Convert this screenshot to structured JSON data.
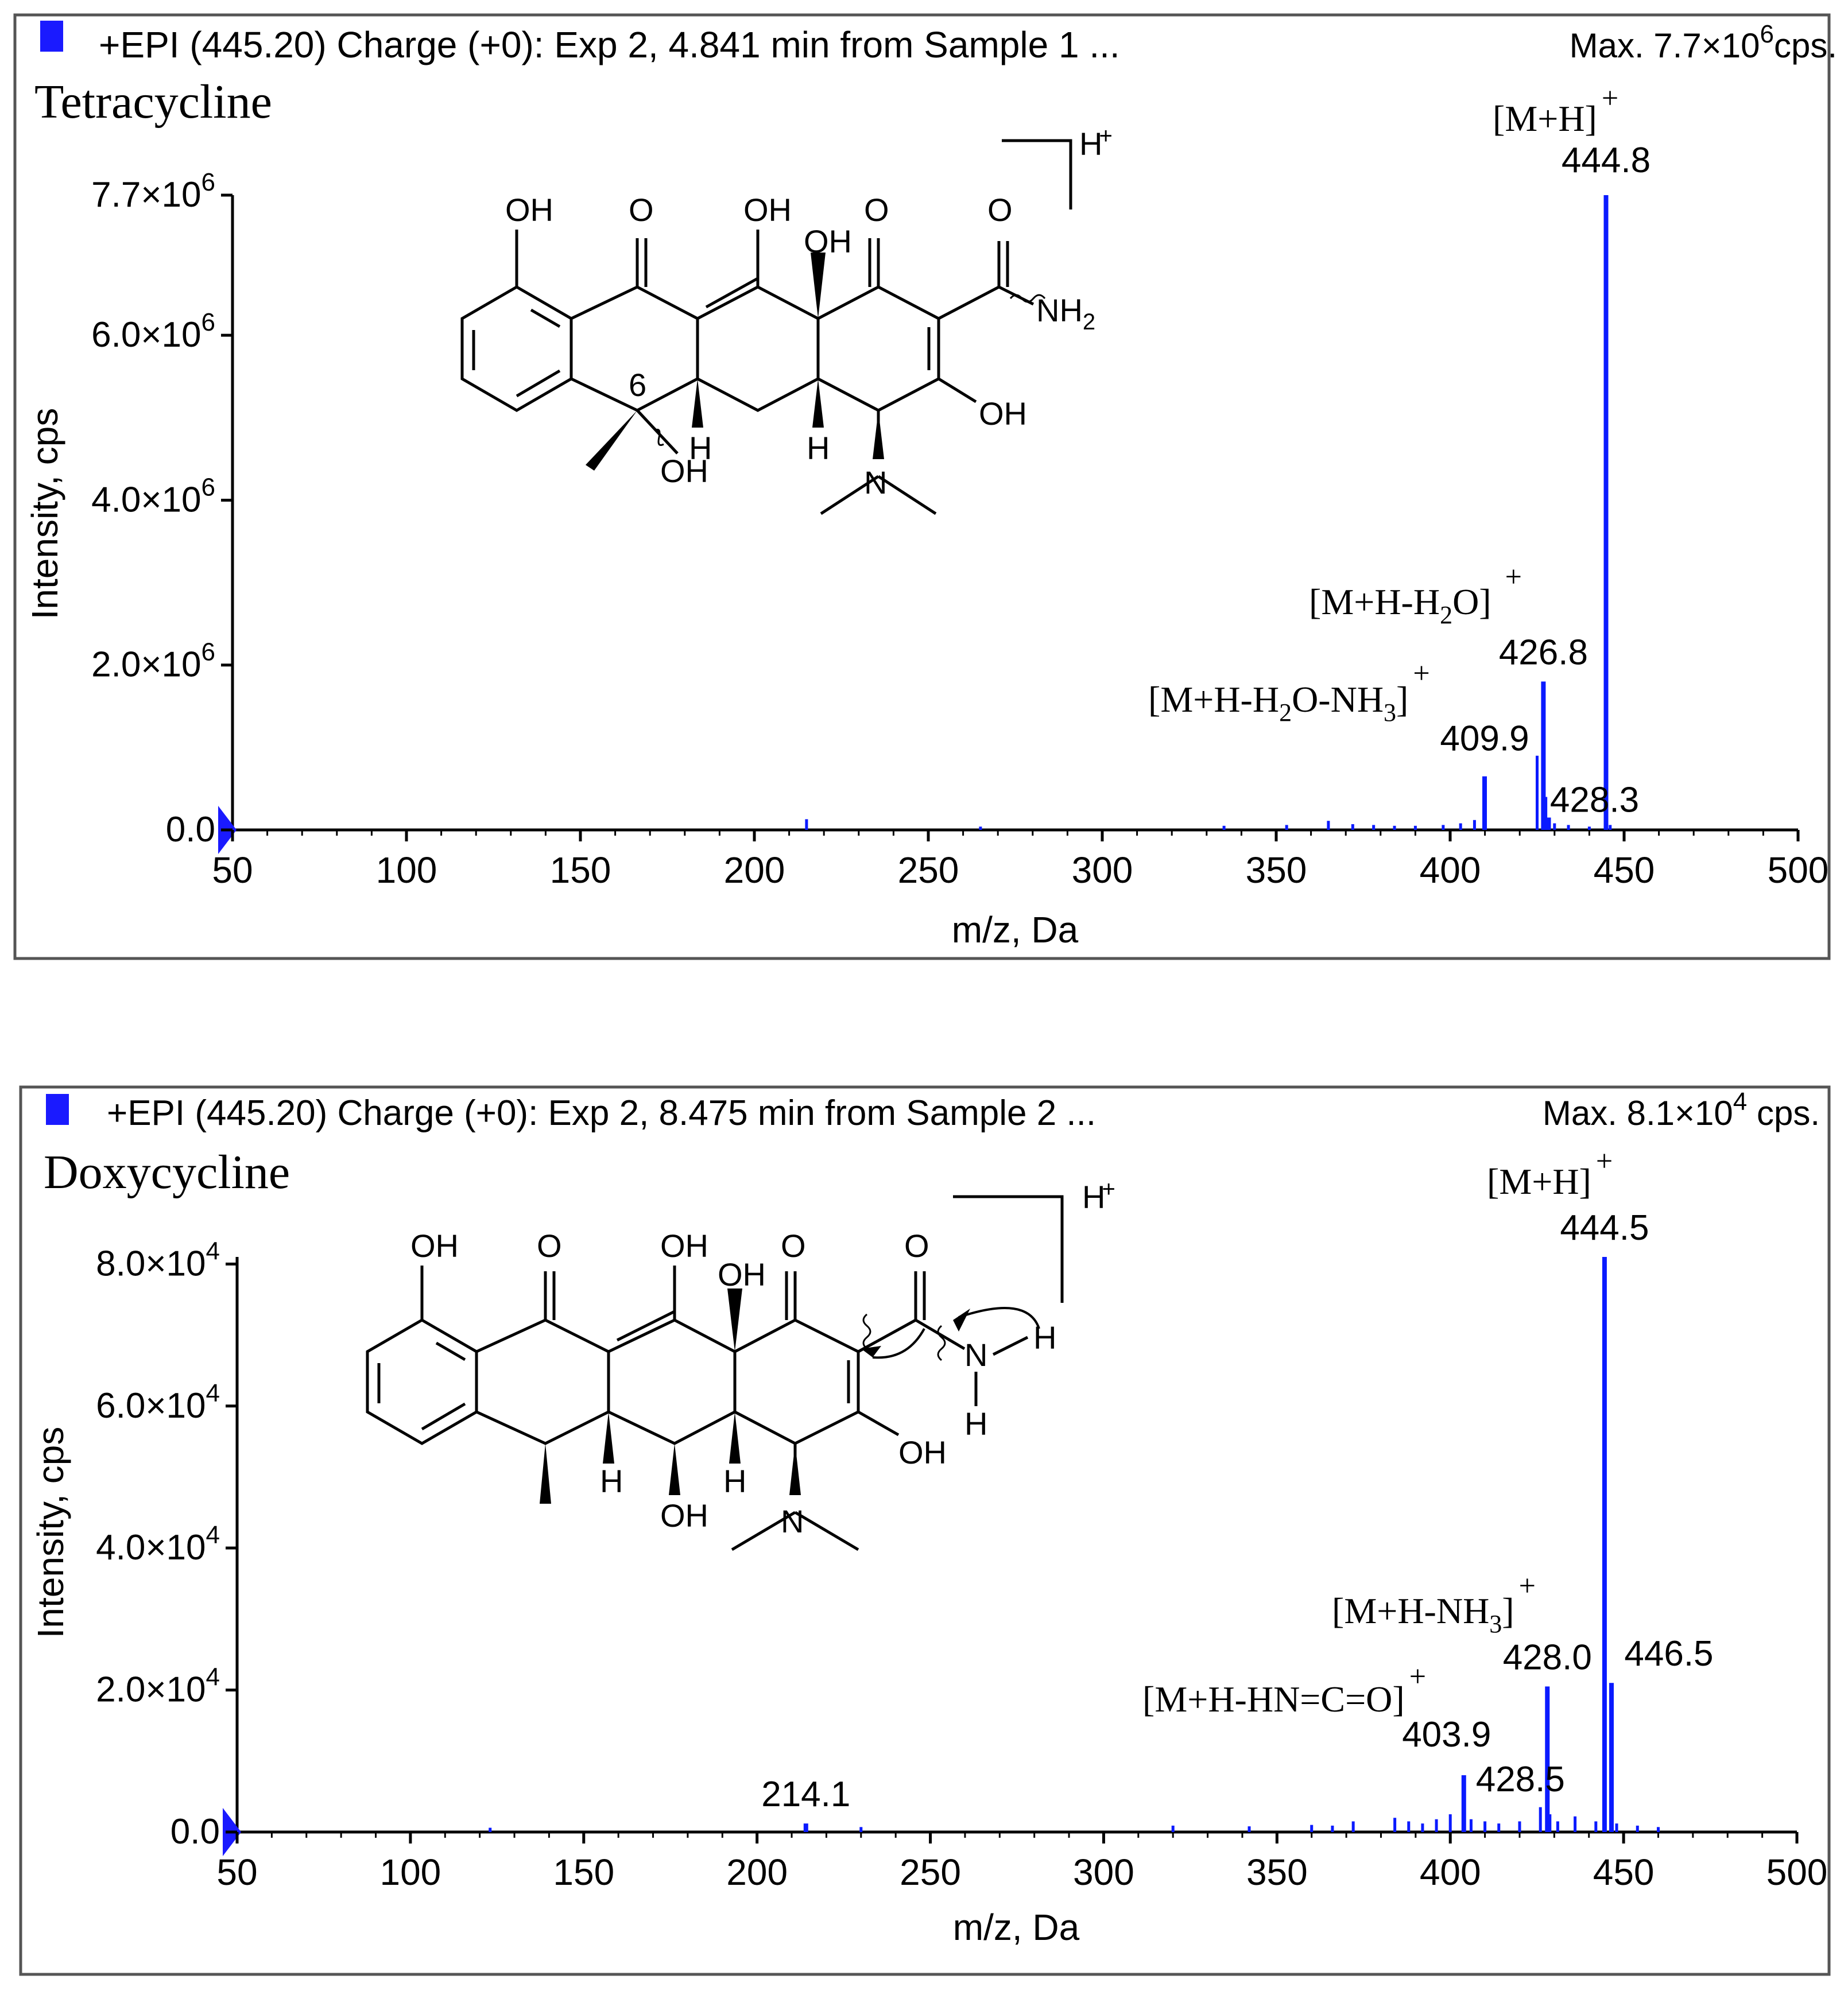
{
  "colors": {
    "peak": "#0a1aff",
    "axis": "#000000",
    "text": "#000000",
    "marker": "#1a1aff"
  },
  "panels": [
    {
      "header": {
        "text": "+EPI (445.20) Charge (+0): Exp 2, 4.841 min from Sample 1 ...",
        "max_prefix": "Max.  7.7×10",
        "max_exp": "6",
        "max_suffix": "cps."
      },
      "compound": "Tetracycline",
      "structure": {
        "oh_labels": [
          "OH",
          "OH",
          "OH",
          "OH",
          "OH"
        ],
        "o_labels": [
          "O",
          "O",
          "O"
        ],
        "nh2_main": "NH",
        "nh2_sub": "2",
        "n_label": "N",
        "h_labels": [
          "H",
          "H"
        ],
        "position_label": "6",
        "proton_label": "H",
        "proton_charge": "+"
      },
      "yticks": [
        {
          "mant": "0.0",
          "exp": ""
        },
        {
          "mant": "2.0×10",
          "exp": "6"
        },
        {
          "mant": "4.0×10",
          "exp": "6"
        },
        {
          "mant": "6.0×10",
          "exp": "6"
        },
        {
          "mant": "7.7×10",
          "exp": "6"
        }
      ],
      "ion_labels": [
        {
          "parts": [
            "[M+H]"
          ],
          "subs": [
            ""
          ],
          "charge": "+"
        },
        {
          "parts": [
            "[M+H-H",
            "O]"
          ],
          "subs": [
            "2",
            ""
          ],
          "charge": "+"
        },
        {
          "parts": [
            "[M+H-H",
            "O-NH",
            "]"
          ],
          "subs": [
            "2",
            "3",
            ""
          ],
          "charge": "+"
        }
      ]
    },
    {
      "header": {
        "text": "+EPI (445.20) Charge (+0): Exp 2, 8.475 min from Sample 2 ...",
        "max_prefix": "Max.  8.1×10",
        "max_exp": "4",
        "max_suffix": " cps."
      },
      "compound": "Doxycycline",
      "structure": {
        "oh_labels": [
          "OH",
          "OH",
          "OH",
          "OH",
          "OH"
        ],
        "o_labels": [
          "O",
          "O",
          "O"
        ],
        "n_label": "N",
        "nh_label": "N",
        "h_labels": [
          "H",
          "H",
          "H",
          "H"
        ],
        "proton_label": "H",
        "proton_charge": "+"
      },
      "yticks": [
        {
          "mant": "0.0",
          "exp": ""
        },
        {
          "mant": "2.0×10",
          "exp": "4"
        },
        {
          "mant": "4.0×10",
          "exp": "4"
        },
        {
          "mant": "6.0×10",
          "exp": "4"
        },
        {
          "mant": "8.0×10",
          "exp": "4"
        }
      ],
      "ion_labels": [
        {
          "parts": [
            "[M+H]"
          ],
          "subs": [
            ""
          ],
          "charge": "+"
        },
        {
          "parts": [
            "[M+H-NH",
            "]"
          ],
          "subs": [
            "3",
            ""
          ],
          "charge": "+"
        },
        {
          "parts": [
            "[M+H-HN=C=O]"
          ],
          "subs": [
            ""
          ],
          "charge": "+"
        }
      ]
    }
  ],
  "chart_data": [
    {
      "type": "bar",
      "title": "Tetracycline",
      "xlabel": "m/z, Da",
      "ylabel": "Intensity, cps",
      "xlim": [
        50,
        500
      ],
      "ylim": [
        0,
        7700000
      ],
      "xticks": [
        50,
        100,
        150,
        200,
        250,
        300,
        350,
        400,
        450,
        500
      ],
      "peaks": [
        {
          "x": 444.8,
          "y": 7700000,
          "label": "444.8"
        },
        {
          "x": 426.8,
          "y": 1800000,
          "label": "426.8"
        },
        {
          "x": 409.9,
          "y": 650000,
          "label": "409.9"
        },
        {
          "x": 428.3,
          "y": 150000,
          "label": "428.3"
        }
      ],
      "minor_peaks": [
        {
          "x": 215,
          "y": 130000
        },
        {
          "x": 265,
          "y": 40000
        },
        {
          "x": 335,
          "y": 50000
        },
        {
          "x": 353,
          "y": 60000
        },
        {
          "x": 365,
          "y": 110000
        },
        {
          "x": 372,
          "y": 70000
        },
        {
          "x": 378,
          "y": 60000
        },
        {
          "x": 384,
          "y": 50000
        },
        {
          "x": 390,
          "y": 50000
        },
        {
          "x": 398,
          "y": 60000
        },
        {
          "x": 403,
          "y": 80000
        },
        {
          "x": 407,
          "y": 120000
        },
        {
          "x": 425,
          "y": 900000
        },
        {
          "x": 427.5,
          "y": 400000
        },
        {
          "x": 430,
          "y": 80000
        },
        {
          "x": 434,
          "y": 60000
        },
        {
          "x": 440,
          "y": 40000
        },
        {
          "x": 446,
          "y": 60000
        }
      ]
    },
    {
      "type": "bar",
      "title": "Doxycycline",
      "xlabel": "m/z, Da",
      "ylabel": "Intensity, cps",
      "xlim": [
        50,
        500
      ],
      "ylim": [
        0,
        81000
      ],
      "xticks": [
        50,
        100,
        150,
        200,
        250,
        300,
        350,
        400,
        450,
        500
      ],
      "peaks": [
        {
          "x": 444.5,
          "y": 81000,
          "label": "444.5"
        },
        {
          "x": 428.0,
          "y": 20500,
          "label": "428.0"
        },
        {
          "x": 403.9,
          "y": 8000,
          "label": "403.9"
        },
        {
          "x": 428.5,
          "y": 2500,
          "label": "428.5"
        },
        {
          "x": 446.5,
          "y": 21000,
          "label": "446.5"
        },
        {
          "x": 214.1,
          "y": 1200,
          "label": "214.1"
        }
      ],
      "minor_peaks": [
        {
          "x": 123,
          "y": 600
        },
        {
          "x": 230,
          "y": 700
        },
        {
          "x": 320,
          "y": 900
        },
        {
          "x": 342,
          "y": 800
        },
        {
          "x": 360,
          "y": 1000
        },
        {
          "x": 366,
          "y": 900
        },
        {
          "x": 372,
          "y": 1500
        },
        {
          "x": 384,
          "y": 2000
        },
        {
          "x": 388,
          "y": 1500
        },
        {
          "x": 392,
          "y": 1200
        },
        {
          "x": 396,
          "y": 1800
        },
        {
          "x": 400,
          "y": 2500
        },
        {
          "x": 406,
          "y": 1800
        },
        {
          "x": 410,
          "y": 1500
        },
        {
          "x": 414,
          "y": 1200
        },
        {
          "x": 420,
          "y": 1500
        },
        {
          "x": 426,
          "y": 3500
        },
        {
          "x": 431,
          "y": 1500
        },
        {
          "x": 436,
          "y": 2200
        },
        {
          "x": 442,
          "y": 1500
        },
        {
          "x": 448,
          "y": 1200
        },
        {
          "x": 454,
          "y": 900
        },
        {
          "x": 460,
          "y": 700
        }
      ]
    }
  ]
}
